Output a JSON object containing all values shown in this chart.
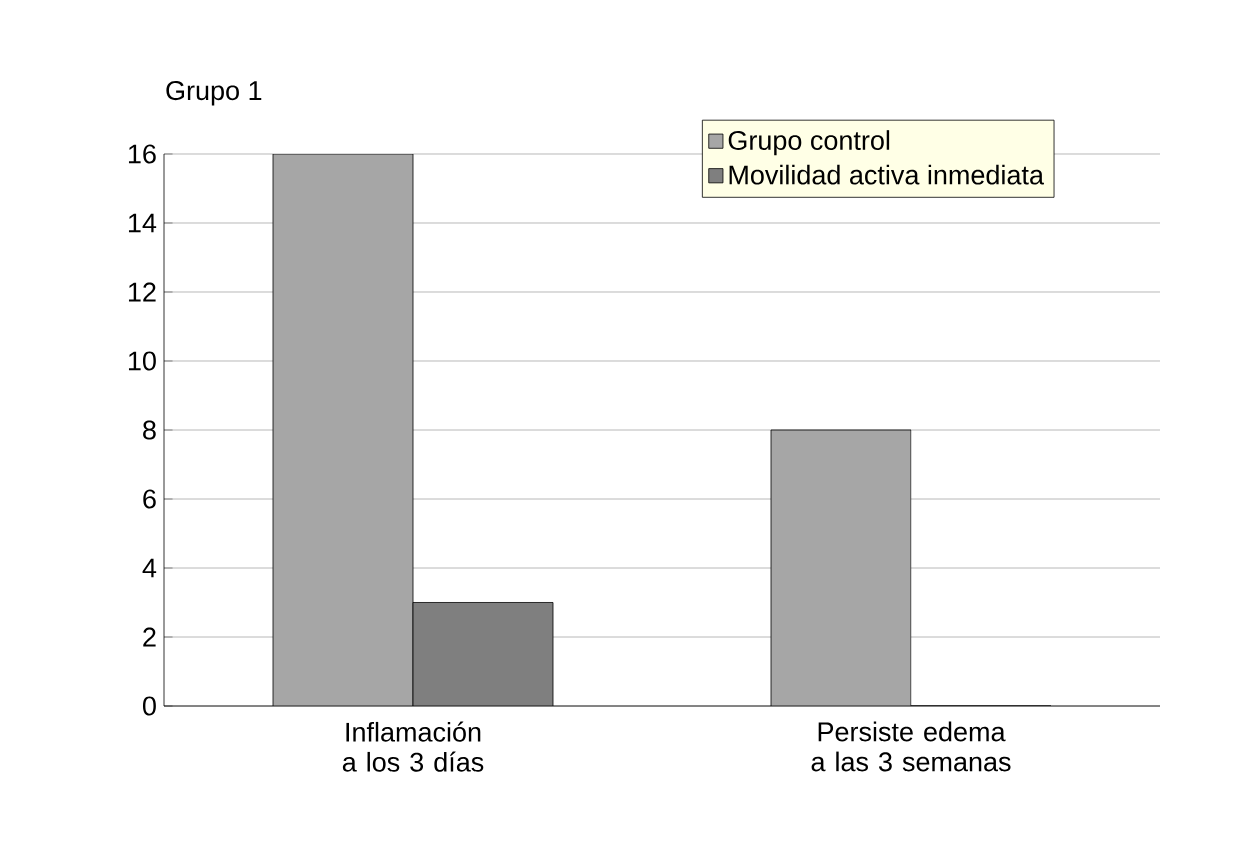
{
  "chart_data": {
    "type": "bar",
    "ylabel": "Grupo 1",
    "categories": [
      "Inflamación a los 3 días",
      "Persiste edema a las 3 semanas"
    ],
    "series": [
      {
        "name": "Grupo control",
        "color": "#a6a6a6",
        "values": [
          16,
          8
        ]
      },
      {
        "name": "Movilidad activa inmediata",
        "color": "#7f7f7f",
        "values": [
          3,
          0
        ]
      }
    ],
    "ylim": [
      0,
      16
    ],
    "yticks": [
      0,
      2,
      4,
      6,
      8,
      10,
      12,
      14,
      16
    ],
    "grid": "y",
    "legend": "top right"
  }
}
